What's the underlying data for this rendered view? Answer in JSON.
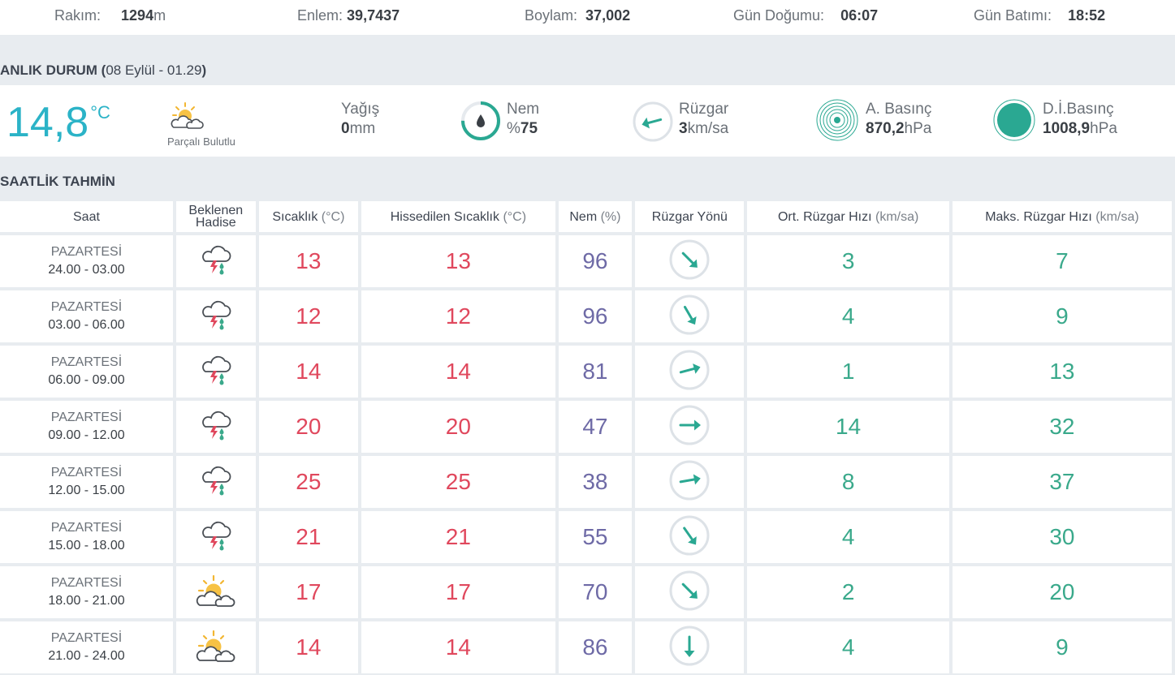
{
  "location": {
    "rakim_label": "Rakım:",
    "rakim_value": "1294",
    "rakim_unit": "m",
    "enlem_label": "Enlem:",
    "enlem_value": "39,7437",
    "boylam_label": "Boylam:",
    "boylam_value": "37,002",
    "gundogumu_label": "Gün Doğumu:",
    "gundogumu_value": "06:07",
    "gunbatimi_label": "Gün Batımı:",
    "gunbatimi_value": "18:52"
  },
  "current": {
    "section_title": "ANLIK DURUM (",
    "section_date": "08 Eylül - 01.29",
    "section_close": ")",
    "temperature": "14,8",
    "temperature_unit": "°C",
    "condition": "Parçalı Bulutlu",
    "condition_icon": "partly-cloudy-icon",
    "yagis_label": "Yağış",
    "yagis_value": "0",
    "yagis_unit": "mm",
    "nem_label": "Nem",
    "nem_prefix": "%",
    "nem_value": "75",
    "nem_ratio": 0.75,
    "ruzgar_label": "Rüzgar",
    "ruzgar_value": "3",
    "ruzgar_unit": "km/sa",
    "abasinc_label": "A. Basınç",
    "abasinc_value": "870,2",
    "abasinc_unit": "hPa",
    "dibasinc_label": "D.İ.Basınç",
    "dibasinc_value": "1008,9",
    "dibasinc_unit": "hPa"
  },
  "hourly": {
    "section_title": "SAATLİK TAHMİN",
    "headers": {
      "saat": "Saat",
      "hadise_1": "Beklenen",
      "hadise_2": "Hadise",
      "sicaklik": "Sıcaklık",
      "sicaklik_unit": "(°C)",
      "hissedilen": "Hissedilen Sıcaklık",
      "hissedilen_unit": "(°C)",
      "nem": "Nem",
      "nem_unit": "(%)",
      "yon": "Rüzgar Yönü",
      "ort": "Ort. Rüzgar Hızı",
      "ort_unit": "(km/sa)",
      "maks": "Maks. Rüzgar Hızı",
      "maks_unit": "(km/sa)"
    },
    "rows": [
      {
        "day": "PAZARTESİ",
        "time": "24.00 - 03.00",
        "icon": "thunderstorm-rain-icon",
        "temp": "13",
        "feels": "13",
        "nem": "96",
        "wind_dir_deg": 135,
        "avg": "3",
        "max": "7"
      },
      {
        "day": "PAZARTESİ",
        "time": "03.00 - 06.00",
        "icon": "thunderstorm-rain-icon",
        "temp": "12",
        "feels": "12",
        "nem": "96",
        "wind_dir_deg": 150,
        "avg": "4",
        "max": "9"
      },
      {
        "day": "PAZARTESİ",
        "time": "06.00 - 09.00",
        "icon": "thunderstorm-rain-icon",
        "temp": "14",
        "feels": "14",
        "nem": "81",
        "wind_dir_deg": 75,
        "avg": "1",
        "max": "13"
      },
      {
        "day": "PAZARTESİ",
        "time": "09.00 - 12.00",
        "icon": "thunderstorm-rain-icon",
        "temp": "20",
        "feels": "20",
        "nem": "47",
        "wind_dir_deg": 90,
        "avg": "14",
        "max": "32"
      },
      {
        "day": "PAZARTESİ",
        "time": "12.00 - 15.00",
        "icon": "thunderstorm-rain-icon",
        "temp": "25",
        "feels": "25",
        "nem": "38",
        "wind_dir_deg": 80,
        "avg": "8",
        "max": "37"
      },
      {
        "day": "PAZARTESİ",
        "time": "15.00 - 18.00",
        "icon": "thunderstorm-rain-icon",
        "temp": "21",
        "feels": "21",
        "nem": "55",
        "wind_dir_deg": 145,
        "avg": "4",
        "max": "30"
      },
      {
        "day": "PAZARTESİ",
        "time": "18.00 - 21.00",
        "icon": "partly-cloudy-icon",
        "temp": "17",
        "feels": "17",
        "nem": "70",
        "wind_dir_deg": 135,
        "avg": "2",
        "max": "20"
      },
      {
        "day": "PAZARTESİ",
        "time": "21.00 - 24.00",
        "icon": "partly-cloudy-icon",
        "temp": "14",
        "feels": "14",
        "nem": "86",
        "wind_dir_deg": 180,
        "avg": "4",
        "max": "9"
      }
    ]
  },
  "colors": {
    "accent_teal": "#2bb3c7",
    "wind_green": "#3aa98b",
    "temp_red": "#e0485d",
    "humidity_purple": "#6e6aa6"
  }
}
